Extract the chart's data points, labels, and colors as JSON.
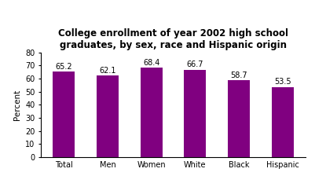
{
  "title": "College enrollment of year 2002 high school\ngraduates, by sex, race and Hispanic origin",
  "categories": [
    "Total",
    "Men",
    "Women",
    "White",
    "Black",
    "Hispanic"
  ],
  "values": [
    65.2,
    62.1,
    68.4,
    66.7,
    58.7,
    53.5
  ],
  "bar_color": "#800080",
  "ylabel": "Percent",
  "ylim": [
    0,
    80
  ],
  "yticks": [
    0,
    10,
    20,
    30,
    40,
    50,
    60,
    70,
    80
  ],
  "title_fontsize": 8.5,
  "label_fontsize": 7.5,
  "tick_fontsize": 7,
  "value_fontsize": 7,
  "background_color": "#ffffff",
  "bar_width": 0.5
}
